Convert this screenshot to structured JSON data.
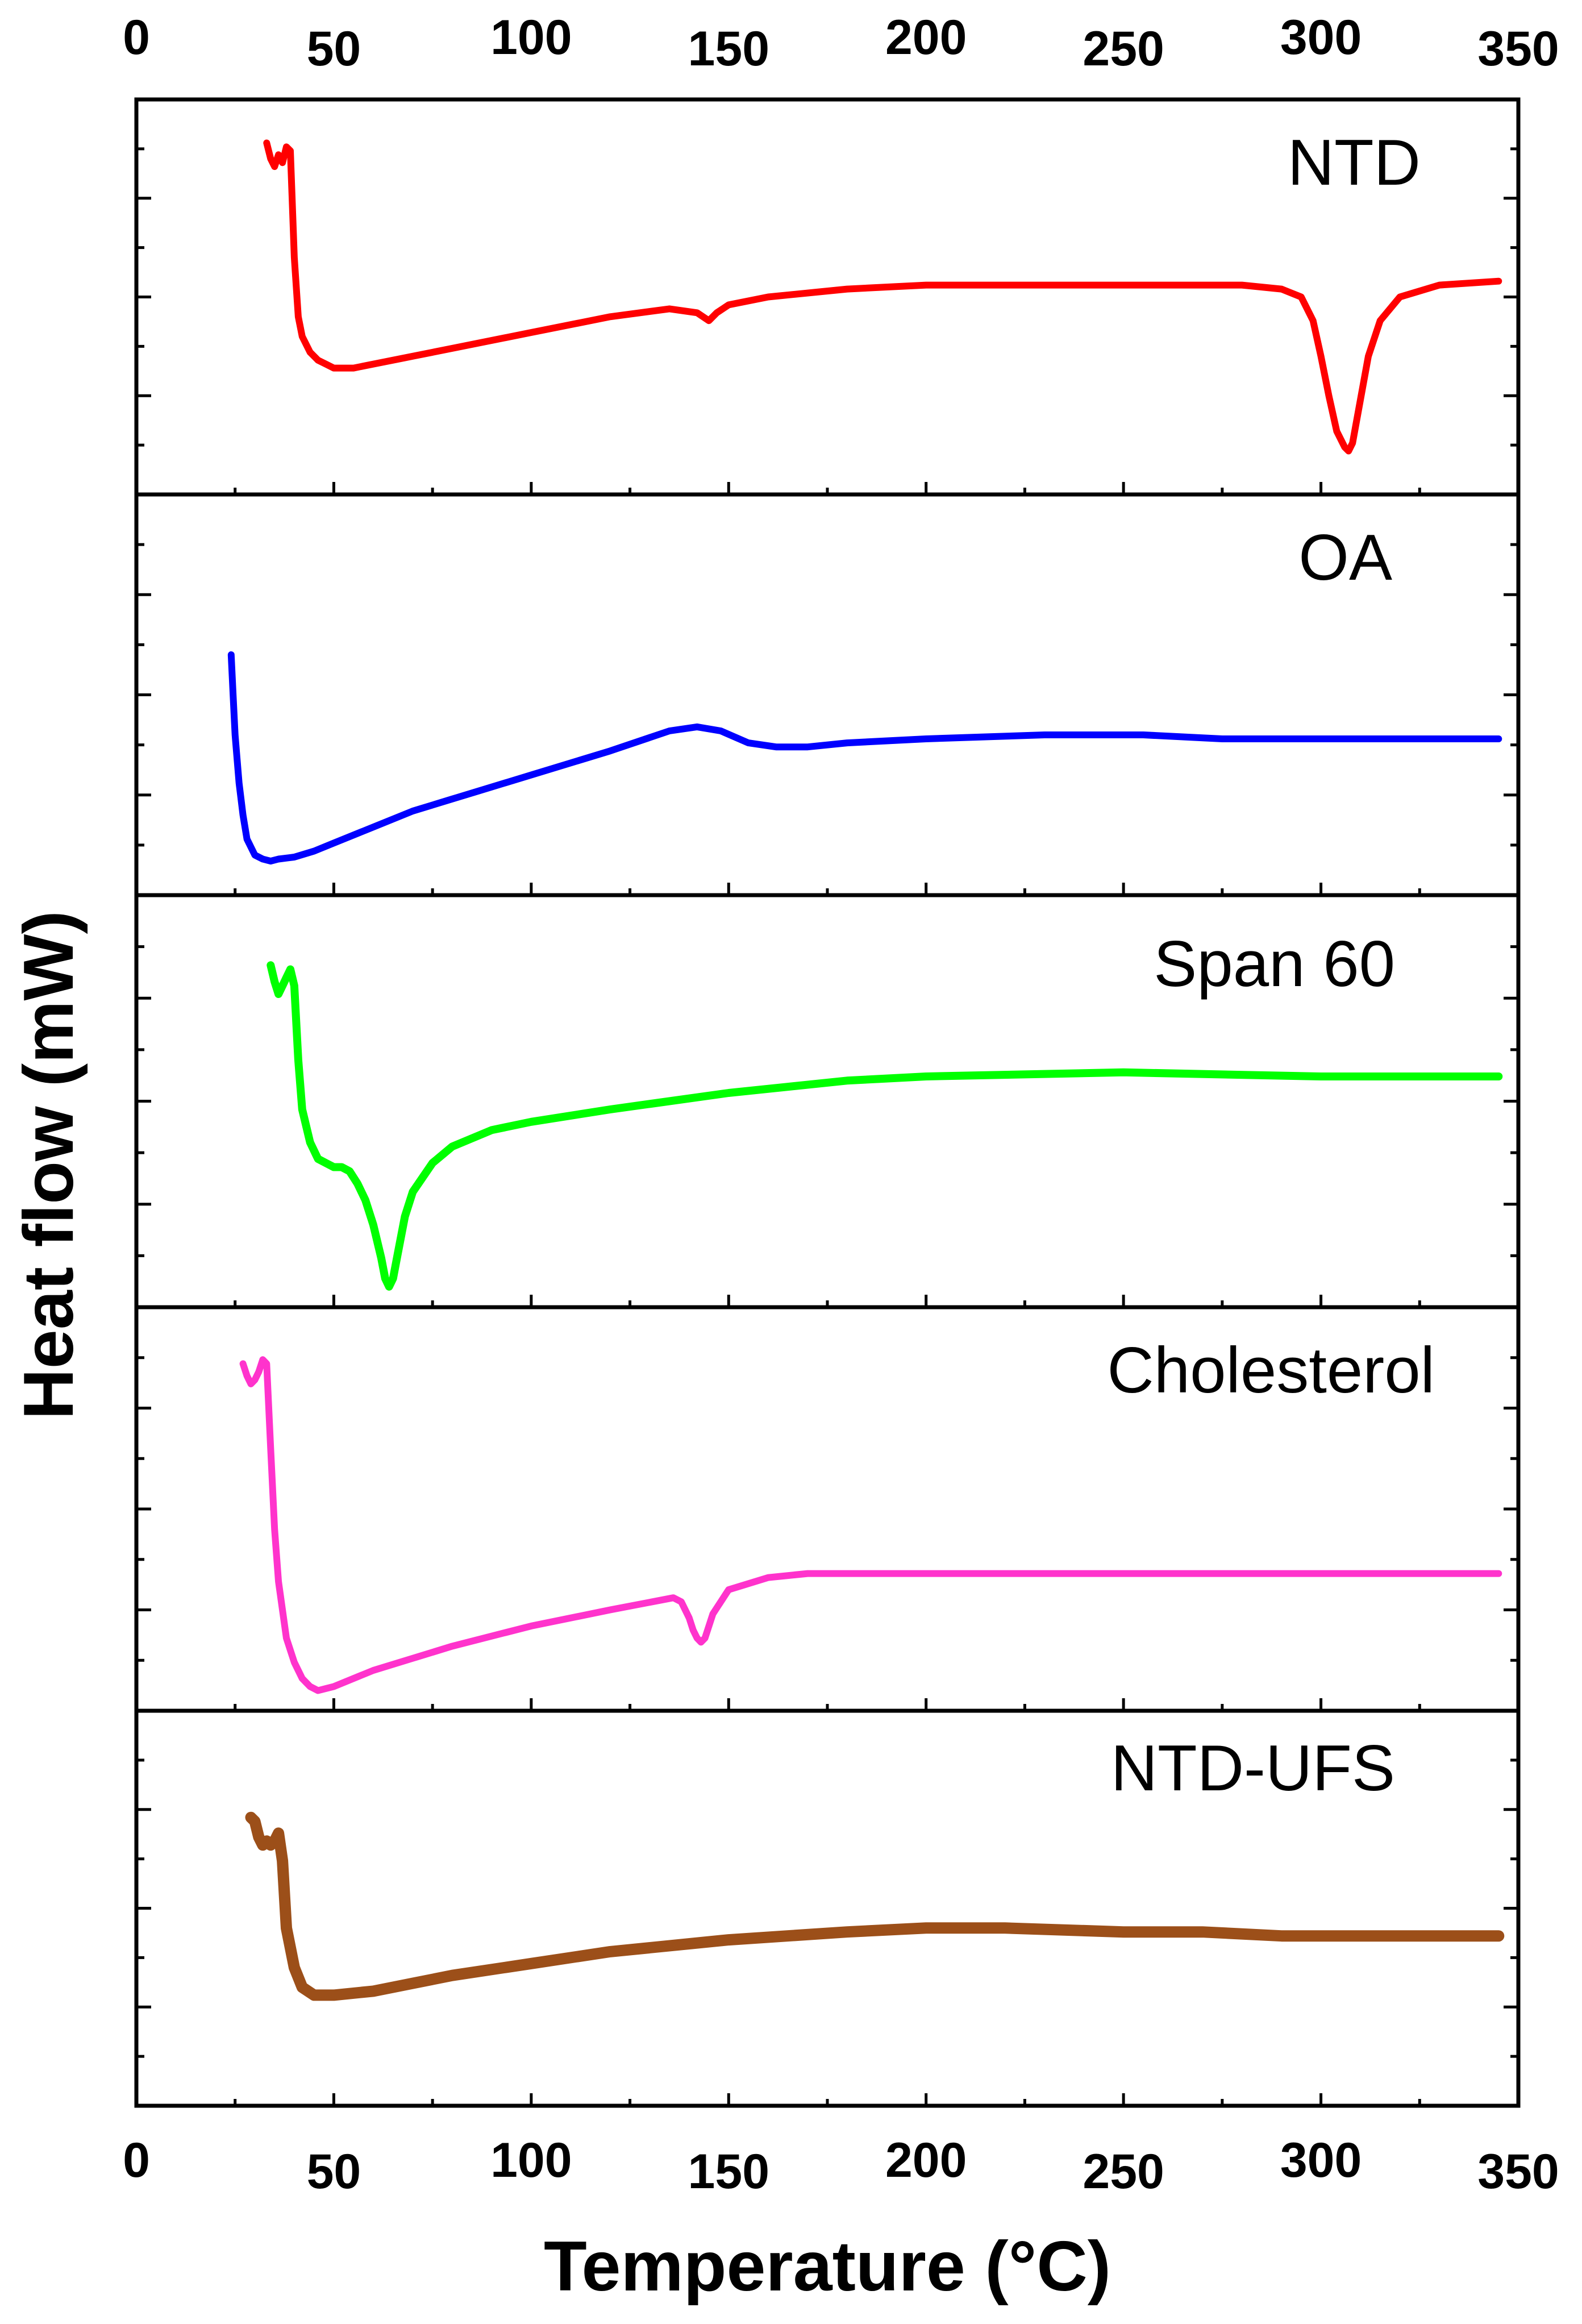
{
  "chart_data": {
    "type": "line",
    "xlabel": "Temperature (°C)",
    "ylabel": "Heat flow (mW)",
    "xlim": [
      0,
      350
    ],
    "x_ticks": [
      0,
      50,
      100,
      150,
      200,
      250,
      300,
      350
    ],
    "y_units": "arbitrary, stacked panels (no numeric y tick labels)",
    "ylim": [
      0,
      1
    ],
    "grid": false,
    "series": [
      {
        "name": "NTD",
        "color": "#ff0000",
        "x": [
          33,
          34,
          35,
          36,
          37,
          38,
          39,
          40,
          41,
          42,
          44,
          46,
          48,
          50,
          55,
          60,
          70,
          80,
          100,
          120,
          135,
          142,
          145,
          147,
          150,
          160,
          180,
          200,
          250,
          280,
          290,
          295,
          298,
          300,
          302,
          304,
          306,
          307,
          308,
          310,
          312,
          315,
          320,
          330,
          345
        ],
        "y": [
          0.89,
          0.85,
          0.83,
          0.86,
          0.84,
          0.88,
          0.87,
          0.6,
          0.45,
          0.4,
          0.36,
          0.34,
          0.33,
          0.32,
          0.32,
          0.33,
          0.35,
          0.37,
          0.41,
          0.45,
          0.47,
          0.46,
          0.44,
          0.46,
          0.48,
          0.5,
          0.52,
          0.53,
          0.53,
          0.53,
          0.52,
          0.5,
          0.44,
          0.35,
          0.25,
          0.16,
          0.12,
          0.11,
          0.13,
          0.24,
          0.35,
          0.44,
          0.5,
          0.53,
          0.54
        ]
      },
      {
        "name": "OA",
        "color": "#0000ff",
        "x": [
          24,
          24.5,
          25,
          26,
          27,
          28,
          30,
          32,
          34,
          36,
          40,
          45,
          50,
          60,
          70,
          80,
          100,
          120,
          135,
          142,
          148,
          155,
          162,
          170,
          180,
          200,
          230,
          255,
          275,
          300,
          320,
          345
        ],
        "y": [
          0.6,
          0.5,
          0.4,
          0.28,
          0.2,
          0.14,
          0.1,
          0.09,
          0.085,
          0.09,
          0.095,
          0.11,
          0.13,
          0.17,
          0.21,
          0.24,
          0.3,
          0.36,
          0.41,
          0.42,
          0.41,
          0.38,
          0.37,
          0.37,
          0.38,
          0.39,
          0.4,
          0.4,
          0.39,
          0.39,
          0.39,
          0.39
        ]
      },
      {
        "name": "Span 60",
        "color": "#00ff00",
        "x": [
          34,
          35,
          36,
          37,
          38,
          39,
          40,
          41,
          42,
          44,
          46,
          48,
          50,
          52,
          54,
          56,
          58,
          60,
          62,
          63,
          64,
          65,
          66,
          68,
          70,
          75,
          80,
          90,
          100,
          120,
          150,
          180,
          200,
          250,
          300,
          345
        ],
        "y": [
          0.83,
          0.79,
          0.76,
          0.78,
          0.8,
          0.82,
          0.78,
          0.6,
          0.48,
          0.4,
          0.36,
          0.35,
          0.34,
          0.34,
          0.33,
          0.3,
          0.26,
          0.2,
          0.12,
          0.07,
          0.05,
          0.07,
          0.12,
          0.22,
          0.28,
          0.35,
          0.39,
          0.43,
          0.45,
          0.48,
          0.52,
          0.55,
          0.56,
          0.57,
          0.56,
          0.56
        ]
      },
      {
        "name": "Cholesterol",
        "color": "#ff33cc",
        "x": [
          27,
          28,
          29,
          30,
          31,
          32,
          33,
          34,
          35,
          36,
          38,
          40,
          42,
          44,
          46,
          48,
          50,
          60,
          70,
          80,
          100,
          120,
          136,
          138,
          140,
          141,
          142,
          143,
          144,
          146,
          150,
          160,
          170,
          200,
          250,
          300,
          345
        ],
        "y": [
          0.86,
          0.83,
          0.81,
          0.82,
          0.84,
          0.87,
          0.86,
          0.65,
          0.45,
          0.32,
          0.18,
          0.12,
          0.08,
          0.06,
          0.05,
          0.055,
          0.06,
          0.1,
          0.13,
          0.16,
          0.21,
          0.25,
          0.28,
          0.27,
          0.23,
          0.2,
          0.18,
          0.17,
          0.18,
          0.24,
          0.3,
          0.33,
          0.34,
          0.34,
          0.34,
          0.34,
          0.34
        ]
      },
      {
        "name": "NTD-UFS",
        "color": "#9c4f19",
        "x": [
          29,
          30,
          31,
          32,
          33,
          34,
          35,
          36,
          37,
          38,
          40,
          42,
          45,
          50,
          60,
          70,
          80,
          100,
          120,
          150,
          180,
          200,
          220,
          250,
          270,
          290,
          320,
          345
        ],
        "y": [
          0.73,
          0.72,
          0.68,
          0.66,
          0.67,
          0.66,
          0.67,
          0.69,
          0.62,
          0.45,
          0.35,
          0.3,
          0.28,
          0.28,
          0.29,
          0.31,
          0.33,
          0.36,
          0.39,
          0.42,
          0.44,
          0.45,
          0.45,
          0.44,
          0.44,
          0.43,
          0.43,
          0.43
        ]
      }
    ]
  }
}
